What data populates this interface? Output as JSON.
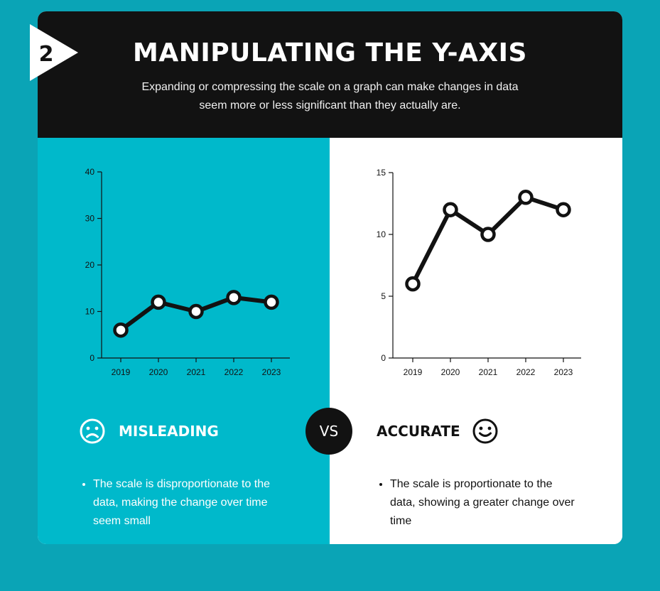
{
  "header": {
    "badge_number": "2",
    "title": "MANIPULATING THE Y-AXIS",
    "subtitle": "Expanding or compressing the scale on a graph can make changes in data seem more or less significant than they actually are."
  },
  "vs_label": "VS",
  "left": {
    "heading": "MISLEADING",
    "face_icon": "sad-face-icon",
    "bullet": "The scale is disproportionate to the data, making the change over time seem small",
    "text_color": "#ffffff"
  },
  "right": {
    "heading": "ACCURATE",
    "face_icon": "smiley-face-icon",
    "bullet": "The scale is proportionate to the data, showing a greater change over time",
    "text_color": "#121212"
  },
  "colors": {
    "background": "#0aa4b6",
    "left_panel": "#00b9cb",
    "header": "#121212",
    "line": "#121212"
  },
  "chart_data": [
    {
      "type": "line",
      "x": [
        "2019",
        "2020",
        "2021",
        "2022",
        "2023"
      ],
      "values": [
        6,
        12,
        10,
        13,
        12
      ],
      "ylim": [
        0,
        40
      ],
      "yticks": [
        0,
        10,
        20,
        30,
        40
      ],
      "grid": false,
      "legend": "none"
    },
    {
      "type": "line",
      "x": [
        "2019",
        "2020",
        "2021",
        "2022",
        "2023"
      ],
      "values": [
        6,
        12,
        10,
        13,
        12
      ],
      "ylim": [
        0,
        15
      ],
      "yticks": [
        0,
        5,
        10,
        15
      ],
      "grid": false,
      "legend": "none"
    }
  ]
}
